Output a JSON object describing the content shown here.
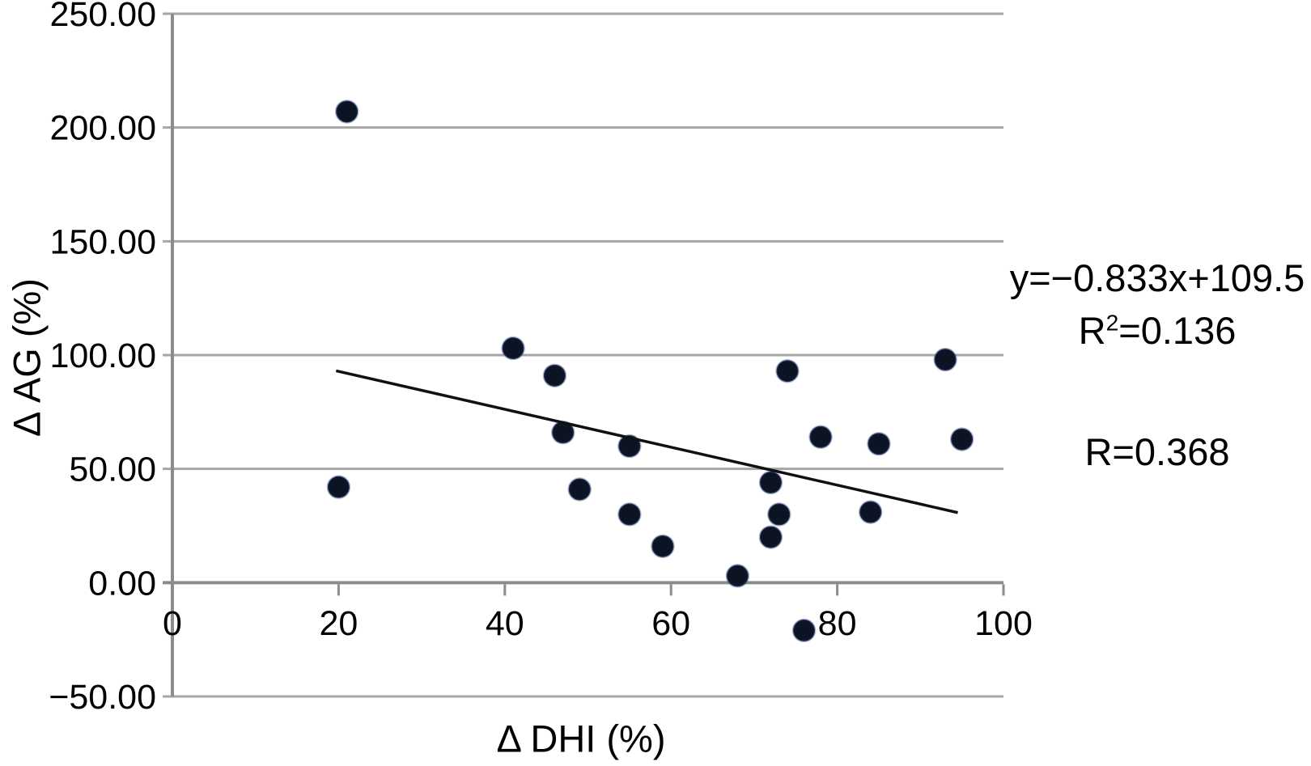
{
  "chart_data": {
    "type": "scatter",
    "xlabel": "Δ DHI (%)",
    "ylabel": "Δ AG (%)",
    "xlim": [
      0,
      100
    ],
    "ylim": [
      -50,
      250
    ],
    "grid": true,
    "legend": "none",
    "x_ticks": {
      "values": [
        0,
        20,
        40,
        60,
        80,
        100
      ],
      "labels": [
        "0",
        "20",
        "40",
        "60",
        "80",
        "100"
      ]
    },
    "y_ticks": {
      "values": [
        250,
        200,
        150,
        100,
        50,
        0,
        -50
      ],
      "labels": [
        "250.00",
        "200.00",
        "150.00",
        "100.00",
        "50.00",
        "0.00",
        "−50.00"
      ]
    },
    "points": [
      [
        21,
        207
      ],
      [
        20,
        42
      ],
      [
        41,
        103
      ],
      [
        46,
        91
      ],
      [
        47,
        66
      ],
      [
        49,
        41
      ],
      [
        55,
        60
      ],
      [
        55,
        30
      ],
      [
        59,
        16
      ],
      [
        68,
        3
      ],
      [
        72,
        44
      ],
      [
        72,
        20
      ],
      [
        73,
        30
      ],
      [
        74,
        93
      ],
      [
        76,
        -21
      ],
      [
        78,
        64
      ],
      [
        85,
        61
      ],
      [
        84,
        31
      ],
      [
        93,
        98
      ],
      [
        95,
        63
      ]
    ],
    "trendline": {
      "slope": -0.833,
      "intercept": 109.5,
      "x_start": 19.7,
      "x_end": 94.5
    },
    "annotations": {
      "equation": "y=−0.833x+109.5",
      "r_squared": {
        "base": "R",
        "sup": "2",
        "rest": "=0.136"
      },
      "r": "R=0.368"
    },
    "colors": {
      "marker": "#0c1322",
      "marker_halo": "#3b5691",
      "grid": "#a6a6a6",
      "axis": "#8c8c8c",
      "trendline": "#111111",
      "text": "#000000"
    }
  }
}
